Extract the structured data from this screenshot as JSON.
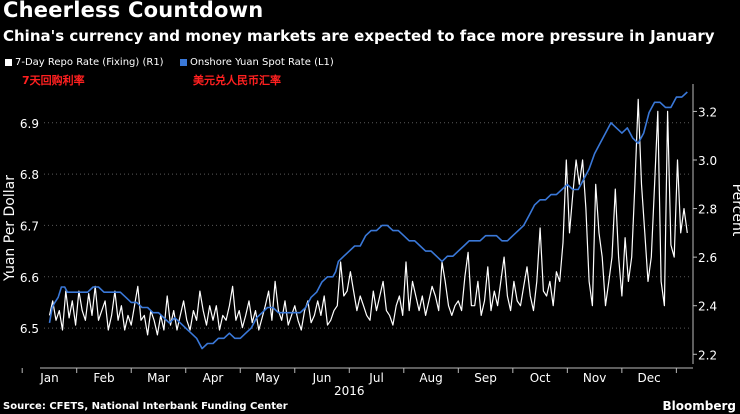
{
  "header": {
    "title": "Cheerless Countdown",
    "subtitle": "China's currency and money markets are expected to face more pressure in January"
  },
  "legend": {
    "items": [
      {
        "label": "7-Day Repo Rate (Fixing) (R1)",
        "color": "#ffffff"
      },
      {
        "label": "Onshore Yuan Spot Rate (L1)",
        "color": "#3a78d8"
      }
    ]
  },
  "annotations": {
    "repo_cn": "7天回购利率",
    "yuan_cn": "美元兑人民币汇率",
    "cn_color": "#ff2020"
  },
  "footer": {
    "source": "Source: CFETS, National Interbank Funding Center",
    "brand": "Bloomberg"
  },
  "chart_data": {
    "type": "line",
    "title": "Cheerless Countdown",
    "xlabel": "2016",
    "ylabel_left": "Yuan Per Dollar",
    "ylabel_right": "Percent",
    "x_ticks": [
      "Jan",
      "Feb",
      "Mar",
      "Apr",
      "May",
      "Jun",
      "Jul",
      "Aug",
      "Sep",
      "Oct",
      "Nov",
      "Dec"
    ],
    "x_year": "2016",
    "ylim_left": [
      6.43,
      6.96
    ],
    "ylim_right": [
      2.16,
      3.28
    ],
    "yticks_left": [
      6.5,
      6.6,
      6.7,
      6.8,
      6.9
    ],
    "yticks_right": [
      2.2,
      2.4,
      2.6,
      2.8,
      3.0,
      3.2
    ],
    "grid": "horizontal-dotted",
    "series": [
      {
        "name": "Onshore Yuan Spot Rate (L1)",
        "axis": "left",
        "color": "#3a78d8",
        "x": [
          0,
          0.05,
          0.1,
          0.16,
          0.22,
          0.28,
          0.33,
          0.4,
          0.48,
          0.55,
          0.62,
          0.7,
          0.8,
          0.9,
          1.0,
          1.1,
          1.2,
          1.3,
          1.4,
          1.5,
          1.6,
          1.7,
          1.8,
          1.9,
          2.0,
          2.1,
          2.2,
          2.3,
          2.4,
          2.5,
          2.6,
          2.7,
          2.8,
          2.9,
          3.0,
          3.1,
          3.2,
          3.3,
          3.4,
          3.5,
          3.6,
          3.7,
          3.8,
          3.9,
          4.0,
          4.1,
          4.2,
          4.3,
          4.4,
          4.5,
          4.6,
          4.7,
          4.8,
          4.9,
          5.0,
          5.1,
          5.2,
          5.25,
          5.3,
          5.4,
          5.5,
          5.6,
          5.7,
          5.8,
          5.9,
          6.0,
          6.1,
          6.2,
          6.3,
          6.4,
          6.5,
          6.6,
          6.7,
          6.8,
          6.9,
          7.0,
          7.1,
          7.2,
          7.3,
          7.4,
          7.5,
          7.6,
          7.7,
          7.8,
          7.9,
          8.0,
          8.1,
          8.2,
          8.3,
          8.4,
          8.5,
          8.6,
          8.7,
          8.8,
          8.9,
          9.0,
          9.1,
          9.2,
          9.3,
          9.4,
          9.5,
          9.6,
          9.7,
          9.8,
          9.9,
          10.0,
          10.1,
          10.2,
          10.3,
          10.4,
          10.5,
          10.6,
          10.7,
          10.8,
          10.9,
          11.0,
          11.1,
          11.2,
          11.3,
          11.4,
          11.5,
          11.6,
          11.7
        ],
        "values": [
          6.51,
          6.54,
          6.55,
          6.56,
          6.58,
          6.58,
          6.57,
          6.57,
          6.57,
          6.57,
          6.57,
          6.57,
          6.58,
          6.58,
          6.57,
          6.57,
          6.57,
          6.57,
          6.56,
          6.55,
          6.55,
          6.54,
          6.54,
          6.53,
          6.53,
          6.52,
          6.51,
          6.52,
          6.51,
          6.5,
          6.49,
          6.48,
          6.46,
          6.47,
          6.47,
          6.48,
          6.48,
          6.49,
          6.48,
          6.48,
          6.49,
          6.5,
          6.52,
          6.53,
          6.54,
          6.54,
          6.53,
          6.53,
          6.53,
          6.53,
          6.53,
          6.54,
          6.56,
          6.57,
          6.59,
          6.6,
          6.6,
          6.61,
          6.63,
          6.64,
          6.65,
          6.66,
          6.66,
          6.68,
          6.69,
          6.69,
          6.7,
          6.7,
          6.69,
          6.69,
          6.68,
          6.67,
          6.67,
          6.66,
          6.65,
          6.65,
          6.64,
          6.63,
          6.64,
          6.64,
          6.65,
          6.66,
          6.67,
          6.67,
          6.67,
          6.68,
          6.68,
          6.68,
          6.67,
          6.67,
          6.68,
          6.69,
          6.7,
          6.72,
          6.74,
          6.75,
          6.75,
          6.76,
          6.76,
          6.77,
          6.78,
          6.77,
          6.77,
          6.79,
          6.81,
          6.84,
          6.86,
          6.88,
          6.9,
          6.89,
          6.88,
          6.89,
          6.87,
          6.86,
          6.88,
          6.92,
          6.94,
          6.94,
          6.93,
          6.93,
          6.95,
          6.95,
          6.96
        ]
      },
      {
        "name": "7-Day Repo Rate (Fixing) (R1)",
        "axis": "right",
        "color": "#ffffff",
        "x": [
          0,
          0.06,
          0.12,
          0.18,
          0.24,
          0.3,
          0.36,
          0.42,
          0.48,
          0.54,
          0.6,
          0.66,
          0.72,
          0.78,
          0.84,
          0.9,
          0.96,
          1.02,
          1.08,
          1.14,
          1.2,
          1.26,
          1.32,
          1.38,
          1.44,
          1.5,
          1.56,
          1.62,
          1.68,
          1.74,
          1.8,
          1.86,
          1.92,
          1.98,
          2.04,
          2.1,
          2.16,
          2.22,
          2.28,
          2.34,
          2.4,
          2.46,
          2.52,
          2.58,
          2.64,
          2.7,
          2.76,
          2.82,
          2.88,
          2.94,
          3.0,
          3.06,
          3.12,
          3.18,
          3.24,
          3.3,
          3.36,
          3.42,
          3.48,
          3.54,
          3.6,
          3.66,
          3.72,
          3.78,
          3.84,
          3.9,
          3.96,
          4.02,
          4.08,
          4.14,
          4.2,
          4.26,
          4.32,
          4.38,
          4.44,
          4.5,
          4.56,
          4.62,
          4.68,
          4.74,
          4.8,
          4.86,
          4.92,
          4.98,
          5.04,
          5.1,
          5.16,
          5.22,
          5.28,
          5.34,
          5.4,
          5.46,
          5.52,
          5.58,
          5.64,
          5.7,
          5.76,
          5.82,
          5.88,
          5.94,
          6.0,
          6.06,
          6.12,
          6.18,
          6.24,
          6.3,
          6.36,
          6.42,
          6.48,
          6.54,
          6.6,
          6.66,
          6.72,
          6.78,
          6.84,
          6.9,
          6.96,
          7.02,
          7.08,
          7.14,
          7.2,
          7.26,
          7.32,
          7.38,
          7.44,
          7.5,
          7.56,
          7.62,
          7.68,
          7.74,
          7.8,
          7.86,
          7.92,
          7.98,
          8.04,
          8.1,
          8.16,
          8.22,
          8.28,
          8.34,
          8.4,
          8.46,
          8.52,
          8.58,
          8.64,
          8.7,
          8.76,
          8.82,
          8.88,
          8.94,
          9.0,
          9.06,
          9.12,
          9.18,
          9.24,
          9.3,
          9.36,
          9.42,
          9.48,
          9.54,
          9.6,
          9.66,
          9.72,
          9.78,
          9.84,
          9.9,
          9.96,
          10.02,
          10.08,
          10.14,
          10.2,
          10.26,
          10.32,
          10.38,
          10.44,
          10.5,
          10.56,
          10.62,
          10.68,
          10.74,
          10.8,
          10.86,
          10.92,
          10.98,
          11.04,
          11.1,
          11.16,
          11.22,
          11.28,
          11.34,
          11.4,
          11.46,
          11.52,
          11.58,
          11.64,
          11.7
        ],
        "values": [
          2.36,
          2.42,
          2.34,
          2.38,
          2.3,
          2.46,
          2.35,
          2.42,
          2.32,
          2.46,
          2.38,
          2.34,
          2.45,
          2.36,
          2.48,
          2.34,
          2.38,
          2.42,
          2.3,
          2.36,
          2.46,
          2.34,
          2.4,
          2.3,
          2.36,
          2.32,
          2.4,
          2.48,
          2.34,
          2.36,
          2.28,
          2.38,
          2.34,
          2.28,
          2.36,
          2.3,
          2.44,
          2.32,
          2.38,
          2.3,
          2.36,
          2.42,
          2.34,
          2.3,
          2.38,
          2.34,
          2.46,
          2.38,
          2.32,
          2.4,
          2.34,
          2.4,
          2.3,
          2.36,
          2.34,
          2.4,
          2.48,
          2.34,
          2.38,
          2.31,
          2.36,
          2.42,
          2.33,
          2.38,
          2.3,
          2.35,
          2.4,
          2.46,
          2.34,
          2.5,
          2.38,
          2.34,
          2.42,
          2.32,
          2.36,
          2.4,
          2.34,
          2.3,
          2.38,
          2.42,
          2.33,
          2.36,
          2.42,
          2.36,
          2.44,
          2.32,
          2.34,
          2.38,
          2.4,
          2.58,
          2.44,
          2.46,
          2.54,
          2.46,
          2.38,
          2.44,
          2.4,
          2.36,
          2.34,
          2.46,
          2.38,
          2.44,
          2.5,
          2.38,
          2.36,
          2.32,
          2.4,
          2.44,
          2.36,
          2.58,
          2.38,
          2.5,
          2.44,
          2.38,
          2.44,
          2.36,
          2.42,
          2.48,
          2.44,
          2.38,
          2.58,
          2.5,
          2.4,
          2.36,
          2.4,
          2.42,
          2.38,
          2.52,
          2.62,
          2.4,
          2.4,
          2.5,
          2.36,
          2.42,
          2.56,
          2.38,
          2.46,
          2.4,
          2.5,
          2.6,
          2.44,
          2.38,
          2.5,
          2.42,
          2.4,
          2.48,
          2.56,
          2.44,
          2.38,
          2.5,
          2.72,
          2.46,
          2.44,
          2.5,
          2.4,
          2.54,
          2.5,
          2.66,
          3.0,
          2.7,
          2.86,
          3.0,
          2.9,
          3.0,
          2.8,
          2.5,
          2.4,
          2.9,
          2.7,
          2.6,
          2.4,
          2.5,
          2.6,
          2.88,
          2.6,
          2.44,
          2.68,
          2.5,
          2.6,
          2.9,
          3.25,
          2.9,
          2.7,
          2.5,
          2.6,
          2.9,
          3.2,
          2.5,
          2.4,
          3.2,
          2.65,
          2.6,
          3.0,
          2.7,
          2.8,
          2.7
        ]
      }
    ]
  }
}
